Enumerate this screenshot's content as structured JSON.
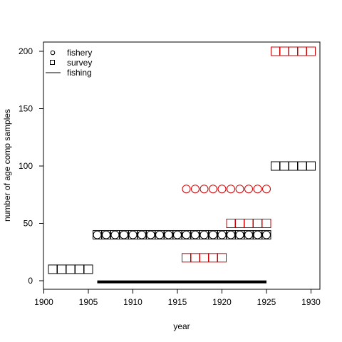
{
  "chart_data": {
    "type": "scatter",
    "title": "",
    "xlabel": "year",
    "ylabel": "number of age comp samples",
    "xlim": [
      1900,
      1930
    ],
    "ylim": [
      0,
      200
    ],
    "x_ticks": [
      1900,
      1905,
      1910,
      1915,
      1920,
      1925,
      1930
    ],
    "y_ticks": [
      0,
      50,
      100,
      150,
      200
    ],
    "grid": false,
    "legend": {
      "placement": "top-left",
      "entries": [
        {
          "name": "fishery",
          "marker": "circle"
        },
        {
          "name": "survey",
          "marker": "square"
        },
        {
          "name": "fishing",
          "marker": "line"
        }
      ]
    },
    "series": [
      {
        "name": "fishing",
        "type": "line",
        "color": "#000000",
        "x": [
          1906,
          1925
        ],
        "y": [
          -1,
          -1
        ]
      },
      {
        "marker": "square",
        "color": "#000000",
        "x": [
          1901,
          1902,
          1903,
          1904,
          1905
        ],
        "y": [
          10,
          10,
          10,
          10,
          10
        ]
      },
      {
        "marker": "circle",
        "color": "#000000",
        "x": [
          1906,
          1907,
          1908,
          1909,
          1910,
          1911,
          1912,
          1913,
          1914,
          1915,
          1916,
          1917,
          1918,
          1919,
          1920,
          1921,
          1922,
          1923,
          1924,
          1925
        ],
        "y": [
          40,
          40,
          40,
          40,
          40,
          40,
          40,
          40,
          40,
          40,
          40,
          40,
          40,
          40,
          40,
          40,
          40,
          40,
          40,
          40
        ]
      },
      {
        "marker": "square",
        "color": "#000000",
        "x": [
          1906,
          1907,
          1908,
          1909,
          1910,
          1911,
          1912,
          1913,
          1914,
          1915,
          1916,
          1917,
          1918,
          1919,
          1920,
          1921,
          1922,
          1923,
          1924,
          1925
        ],
        "y": [
          40,
          40,
          40,
          40,
          40,
          40,
          40,
          40,
          40,
          40,
          40,
          40,
          40,
          40,
          40,
          40,
          40,
          40,
          40,
          40
        ]
      },
      {
        "marker": "circle",
        "color": "#cc0000",
        "x": [
          1916,
          1917,
          1918,
          1919,
          1920,
          1921,
          1922,
          1923,
          1924,
          1925
        ],
        "y": [
          80,
          80,
          80,
          80,
          80,
          80,
          80,
          80,
          80,
          80
        ]
      },
      {
        "marker": "square",
        "color": "#cc0000",
        "x": [
          1916,
          1917,
          1918,
          1919,
          1920
        ],
        "y": [
          20,
          20,
          20,
          20,
          20
        ]
      },
      {
        "marker": "square",
        "color": "#cc0000",
        "x": [
          1921,
          1922,
          1923,
          1924,
          1925
        ],
        "y": [
          50,
          50,
          50,
          50,
          50
        ]
      },
      {
        "marker": "square",
        "color": "#000000",
        "x": [
          1926,
          1927,
          1928,
          1929,
          1930
        ],
        "y": [
          100,
          100,
          100,
          100,
          100
        ]
      },
      {
        "marker": "square",
        "color": "#cc0000",
        "x": [
          1926,
          1927,
          1928,
          1929,
          1930
        ],
        "y": [
          200,
          200,
          200,
          200,
          200
        ]
      }
    ]
  }
}
